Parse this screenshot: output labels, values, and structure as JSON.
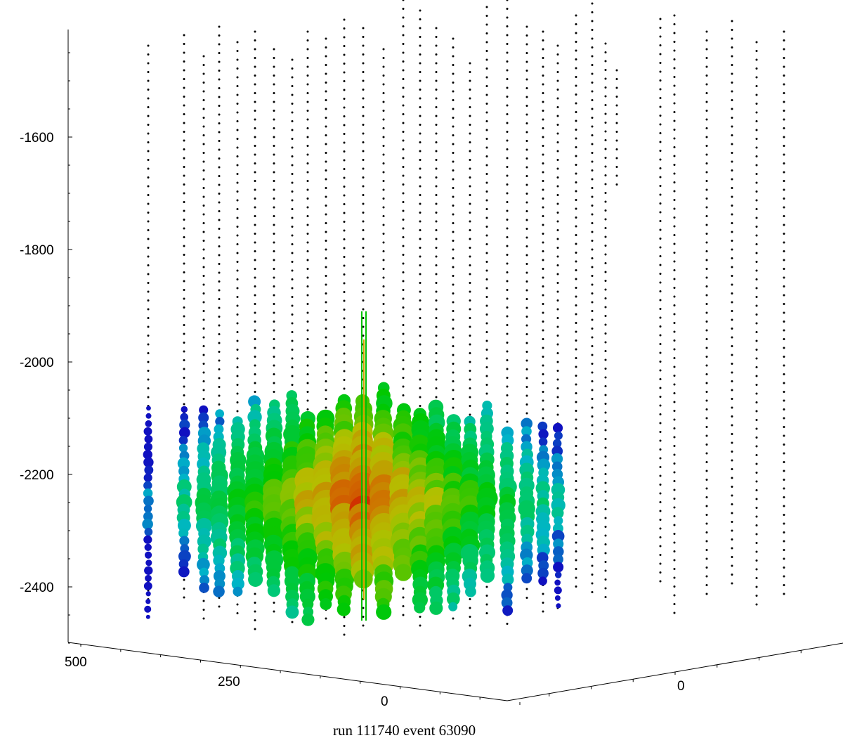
{
  "chart_data": {
    "type": "scatter",
    "title": "",
    "caption": "run 111740  event 63090",
    "z_axis": {
      "ticks": [
        -1600,
        -1800,
        -2000,
        -2200,
        -2400
      ],
      "tick_labels": [
        "-1600",
        "-1800",
        "-2000",
        "-2200",
        "-2400"
      ],
      "range": [
        -2500,
        -1400
      ]
    },
    "x_axis": {
      "tick_labels": [
        "500",
        "250",
        "0"
      ]
    },
    "y_axis": {
      "tick_labels": [
        "0"
      ]
    },
    "hit_center_z": -2250,
    "hit_z_range": [
      -2450,
      -2030
    ],
    "track": {
      "z_top": -1910,
      "z_bottom": -2460,
      "color_top": "#00c000",
      "color_mid": "#d0a000"
    },
    "colors": {
      "early": "#d02000",
      "mid": "#b0c000",
      "late_green": "#00c800",
      "later": "#00c0c0",
      "latest": "#1010c0",
      "dom": "#000000"
    }
  }
}
